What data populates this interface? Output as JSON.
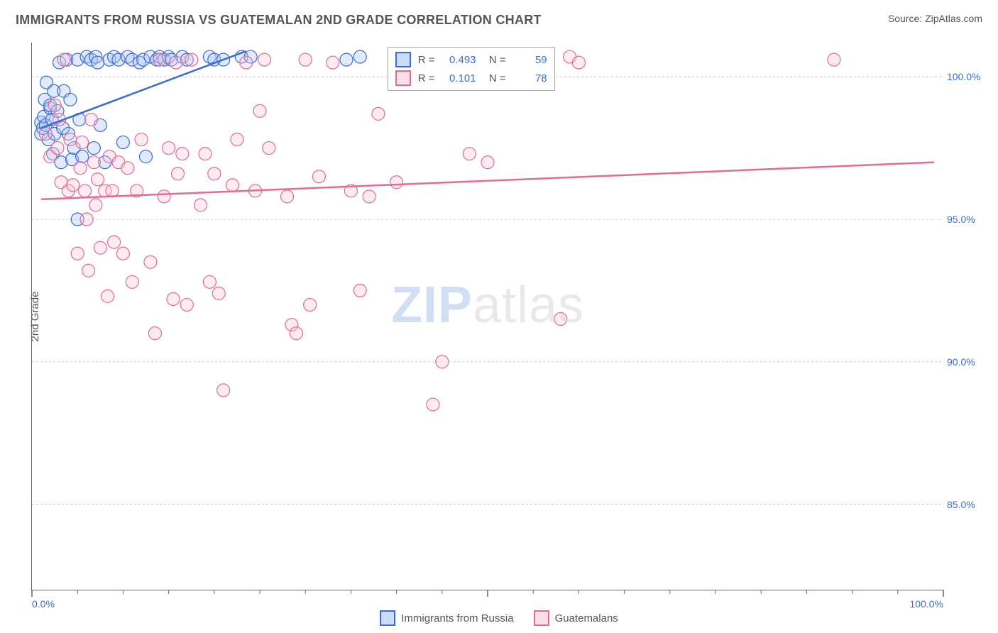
{
  "header": {
    "title": "IMMIGRANTS FROM RUSSIA VS GUATEMALAN 2ND GRADE CORRELATION CHART",
    "source_prefix": "Source: ",
    "source": "ZipAtlas.com"
  },
  "chart": {
    "type": "scatter",
    "ylabel": "2nd Grade",
    "xlim": [
      0,
      100
    ],
    "ylim": [
      82,
      101.2
    ],
    "xticks": [
      0,
      50,
      100
    ],
    "xtick_labels": [
      "0.0%",
      "",
      "100.0%"
    ],
    "yticks": [
      85,
      90,
      95,
      100
    ],
    "ytick_labels": [
      "85.0%",
      "90.0%",
      "95.0%",
      "100.0%"
    ],
    "xtick_minor": [
      5,
      10,
      15,
      20,
      25,
      30,
      35,
      40,
      45,
      55,
      60,
      65,
      70,
      75,
      80,
      85,
      90,
      95
    ],
    "background_color": "#ffffff",
    "grid_color": "#cccccc",
    "axis_color": "#666666",
    "marker_radius": 9,
    "series": [
      {
        "key": "russia",
        "label": "Immigrants from Russia",
        "color_stroke": "#3b6bd6",
        "color_fill": "#a9c4f0",
        "R": "0.493",
        "N": "59",
        "trend": {
          "x1": 1,
          "y1": 98.2,
          "x2": 23.5,
          "y2": 100.9
        },
        "points": [
          [
            1,
            98.4
          ],
          [
            1,
            98.0
          ],
          [
            1.2,
            98.2
          ],
          [
            1.3,
            98.6
          ],
          [
            1.4,
            99.2
          ],
          [
            1.5,
            98.3
          ],
          [
            1.6,
            99.8
          ],
          [
            1.8,
            97.8
          ],
          [
            2,
            98.9
          ],
          [
            2,
            99.0
          ],
          [
            2.2,
            98.5
          ],
          [
            2.3,
            97.3
          ],
          [
            2.4,
            99.5
          ],
          [
            2.5,
            98.0
          ],
          [
            2.8,
            98.8
          ],
          [
            3,
            100.5
          ],
          [
            3.2,
            97.0
          ],
          [
            3.4,
            98.2
          ],
          [
            3.5,
            99.5
          ],
          [
            3.8,
            100.6
          ],
          [
            4,
            98.0
          ],
          [
            4.2,
            99.2
          ],
          [
            4.4,
            97.1
          ],
          [
            4.6,
            97.5
          ],
          [
            5,
            95.0
          ],
          [
            5,
            100.6
          ],
          [
            5.2,
            98.5
          ],
          [
            5.5,
            97.2
          ],
          [
            6,
            100.7
          ],
          [
            6.5,
            100.6
          ],
          [
            6.8,
            97.5
          ],
          [
            7,
            100.7
          ],
          [
            7.2,
            100.5
          ],
          [
            7.5,
            98.3
          ],
          [
            8,
            97.0
          ],
          [
            8.5,
            100.6
          ],
          [
            9,
            100.7
          ],
          [
            9.5,
            100.6
          ],
          [
            10,
            97.7
          ],
          [
            10.5,
            100.7
          ],
          [
            11,
            100.6
          ],
          [
            11.8,
            100.5
          ],
          [
            12.2,
            100.6
          ],
          [
            12.5,
            97.2
          ],
          [
            13,
            100.7
          ],
          [
            13.7,
            100.6
          ],
          [
            14,
            100.7
          ],
          [
            14.5,
            100.6
          ],
          [
            15,
            100.7
          ],
          [
            15.3,
            100.6
          ],
          [
            16.5,
            100.7
          ],
          [
            17,
            100.6
          ],
          [
            19.5,
            100.7
          ],
          [
            20,
            100.6
          ],
          [
            21,
            100.6
          ],
          [
            23,
            100.7
          ],
          [
            24,
            100.7
          ],
          [
            34.5,
            100.6
          ],
          [
            36,
            100.7
          ]
        ]
      },
      {
        "key": "guatemalans",
        "label": "Guatemalans",
        "color_stroke": "#e56a97",
        "color_fill": "#f7c8d8",
        "R": "0.101",
        "N": "78",
        "trend": {
          "x1": 1,
          "y1": 95.7,
          "x2": 99,
          "y2": 97.0
        },
        "points": [
          [
            1.5,
            98.0
          ],
          [
            2,
            97.2
          ],
          [
            2.5,
            99.0
          ],
          [
            2.8,
            97.5
          ],
          [
            3,
            98.5
          ],
          [
            3.2,
            96.3
          ],
          [
            3.5,
            100.6
          ],
          [
            4,
            96.0
          ],
          [
            4.2,
            97.8
          ],
          [
            4.5,
            96.2
          ],
          [
            5,
            93.8
          ],
          [
            5.3,
            96.8
          ],
          [
            5.5,
            97.7
          ],
          [
            5.8,
            96.0
          ],
          [
            6,
            95.0
          ],
          [
            6.2,
            93.2
          ],
          [
            6.5,
            98.5
          ],
          [
            6.8,
            97.0
          ],
          [
            7,
            95.5
          ],
          [
            7.2,
            96.4
          ],
          [
            7.5,
            94.0
          ],
          [
            8,
            96.0
          ],
          [
            8.3,
            92.3
          ],
          [
            8.5,
            97.2
          ],
          [
            8.8,
            96.0
          ],
          [
            9,
            94.2
          ],
          [
            9.5,
            97.0
          ],
          [
            10,
            93.8
          ],
          [
            10.5,
            96.8
          ],
          [
            11,
            92.8
          ],
          [
            11.5,
            96.0
          ],
          [
            12,
            97.8
          ],
          [
            13,
            93.5
          ],
          [
            13.5,
            91.0
          ],
          [
            14,
            100.6
          ],
          [
            14.5,
            95.8
          ],
          [
            15,
            97.5
          ],
          [
            15.5,
            92.2
          ],
          [
            15.8,
            100.5
          ],
          [
            16,
            96.6
          ],
          [
            16.5,
            97.3
          ],
          [
            17,
            92.0
          ],
          [
            17.5,
            100.6
          ],
          [
            18.5,
            95.5
          ],
          [
            19,
            97.3
          ],
          [
            19.5,
            92.8
          ],
          [
            20,
            96.6
          ],
          [
            20.5,
            92.4
          ],
          [
            21,
            89.0
          ],
          [
            22,
            96.2
          ],
          [
            22.5,
            97.8
          ],
          [
            23.5,
            100.5
          ],
          [
            24.5,
            96.0
          ],
          [
            25,
            98.8
          ],
          [
            25.5,
            100.6
          ],
          [
            26,
            97.5
          ],
          [
            28,
            95.8
          ],
          [
            28.5,
            91.3
          ],
          [
            29,
            91.0
          ],
          [
            30,
            100.6
          ],
          [
            30.5,
            92.0
          ],
          [
            31.5,
            96.5
          ],
          [
            33,
            100.5
          ],
          [
            35,
            96.0
          ],
          [
            36,
            92.5
          ],
          [
            37,
            95.8
          ],
          [
            38,
            98.7
          ],
          [
            40,
            96.3
          ],
          [
            42,
            100.5
          ],
          [
            44,
            88.5
          ],
          [
            45,
            90.0
          ],
          [
            48,
            97.3
          ],
          [
            50,
            97.0
          ],
          [
            56,
            100.6
          ],
          [
            58,
            91.5
          ],
          [
            59,
            100.7
          ],
          [
            60,
            100.5
          ],
          [
            88,
            100.6
          ]
        ]
      }
    ],
    "watermark": {
      "part1": "ZIP",
      "part2": "atlas"
    }
  }
}
